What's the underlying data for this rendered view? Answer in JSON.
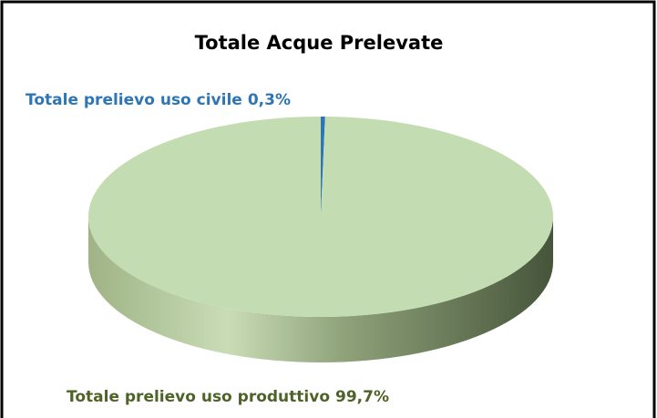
{
  "chart_data": {
    "type": "pie",
    "title": "Totale Acque Prelevate",
    "categories": [
      "Totale prelievo uso civile",
      "Totale prelievo uso produttivo"
    ],
    "values": [
      0.3,
      99.7
    ],
    "value_labels": [
      "0,3%",
      "99,7%"
    ],
    "colors": [
      "#2e75b6",
      "#c4dcb2"
    ],
    "label_colors": [
      "#2e75b6",
      "#4f6228"
    ]
  }
}
